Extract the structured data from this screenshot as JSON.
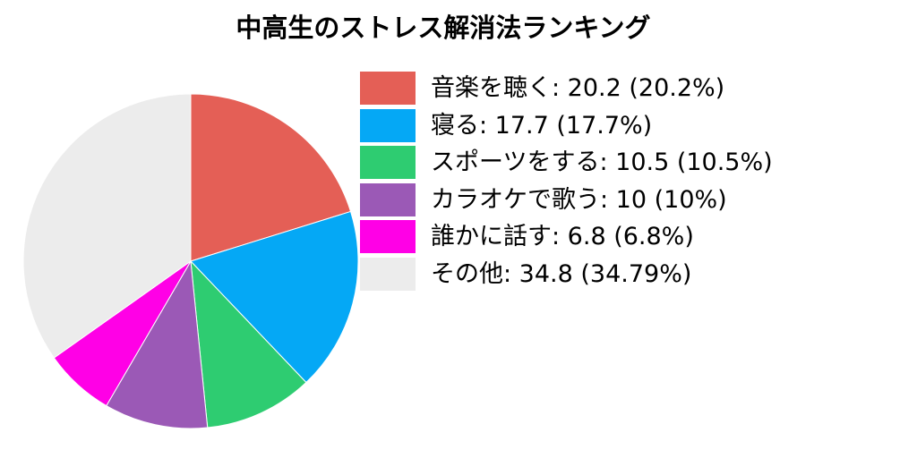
{
  "chart_data": {
    "type": "pie",
    "title": "中高生のストレス解消法ランキング",
    "categories": [
      "音楽を聴く",
      "寝る",
      "スポーツをする",
      "カラオケで歌う",
      "誰かに話す",
      "その他"
    ],
    "values": [
      20.2,
      17.7,
      10.5,
      10,
      6.8,
      34.8
    ],
    "legend_labels": [
      "音楽を聴く: 20.2 (20.2%)",
      "寝る: 17.7 (17.7%)",
      "スポーツをする: 10.5 (10.5%)",
      "カラオケで歌う: 10 (10%)",
      "誰かに話す: 6.8 (6.8%)",
      "その他: 34.8 (34.79%)"
    ],
    "colors": [
      "#e45f56",
      "#05a8f5",
      "#2ecc71",
      "#9b59b6",
      "#ff00e6",
      "#ececec"
    ],
    "start_angle": "12 o'clock",
    "direction": "clockwise",
    "legend_position": "right"
  }
}
